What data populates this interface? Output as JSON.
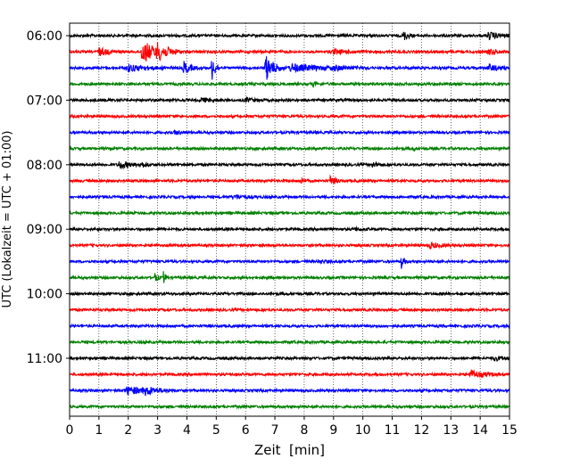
{
  "chart_data": {
    "type": "line",
    "title": "",
    "xlabel": "Zeit  [min]",
    "ylabel": "UTC (Lokalzeit = UTC + 01:00)",
    "xlim": [
      0,
      15
    ],
    "x_ticks": [
      "0",
      "1",
      "2",
      "3",
      "4",
      "5",
      "6",
      "7",
      "8",
      "9",
      "10",
      "11",
      "12",
      "13",
      "14",
      "15"
    ],
    "y_tick_labels": [
      "06:00",
      "07:00",
      "08:00",
      "09:00",
      "10:00",
      "11:00"
    ],
    "grid": "vertical dotted at each minute",
    "legend": "none",
    "trace_interval_minutes": 15,
    "traces": [
      {
        "start": "06:00",
        "color": "#000000",
        "events": [
          {
            "t": 11.4,
            "amp": 0.35,
            "dur": 0.15
          },
          {
            "t": 14.3,
            "amp": 0.25,
            "dur": 0.4
          }
        ]
      },
      {
        "start": "06:15",
        "color": "#ff0000",
        "events": [
          {
            "t": 1.0,
            "amp": 0.3,
            "dur": 0.3
          },
          {
            "t": 2.5,
            "amp": 0.9,
            "dur": 0.4
          },
          {
            "t": 3.0,
            "amp": 0.8,
            "dur": 0.35
          },
          {
            "t": 9.0,
            "amp": 0.15,
            "dur": 0.5
          },
          {
            "t": 14.3,
            "amp": 0.2,
            "dur": 0.3
          }
        ]
      },
      {
        "start": "06:30",
        "color": "#0000ff",
        "events": [
          {
            "t": 2.0,
            "amp": 0.25,
            "dur": 0.6
          },
          {
            "t": 3.9,
            "amp": 0.5,
            "dur": 0.2
          },
          {
            "t": 4.85,
            "amp": 1.0,
            "dur": 0.12
          },
          {
            "t": 6.7,
            "amp": 1.0,
            "dur": 0.25
          },
          {
            "t": 7.6,
            "amp": 0.3,
            "dur": 0.8
          },
          {
            "t": 9.0,
            "amp": 0.2,
            "dur": 0.5
          },
          {
            "t": 14.3,
            "amp": 0.25,
            "dur": 0.3
          }
        ]
      },
      {
        "start": "06:45",
        "color": "#008000",
        "events": [
          {
            "t": 8.3,
            "amp": 0.2,
            "dur": 0.1
          }
        ]
      },
      {
        "start": "07:00",
        "color": "#000000",
        "events": [
          {
            "t": 4.5,
            "amp": 0.15,
            "dur": 0.3
          },
          {
            "t": 6.0,
            "amp": 0.15,
            "dur": 0.3
          }
        ]
      },
      {
        "start": "07:15",
        "color": "#ff0000",
        "events": []
      },
      {
        "start": "07:30",
        "color": "#0000ff",
        "events": [
          {
            "t": 3.6,
            "amp": 0.15,
            "dur": 0.2
          }
        ]
      },
      {
        "start": "07:45",
        "color": "#008000",
        "events": [
          {
            "t": 11.7,
            "amp": 0.15,
            "dur": 0.1
          }
        ]
      },
      {
        "start": "08:00",
        "color": "#000000",
        "events": [
          {
            "t": 1.7,
            "amp": 0.3,
            "dur": 0.3
          },
          {
            "t": 2.4,
            "amp": 0.25,
            "dur": 0.2
          },
          {
            "t": 10.3,
            "amp": 0.2,
            "dur": 0.2
          }
        ]
      },
      {
        "start": "08:15",
        "color": "#ff0000",
        "events": [
          {
            "t": 7.9,
            "amp": 0.2,
            "dur": 0.1
          },
          {
            "t": 8.9,
            "amp": 0.4,
            "dur": 0.15
          }
        ]
      },
      {
        "start": "08:30",
        "color": "#0000ff",
        "events": [
          {
            "t": 5.6,
            "amp": 0.15,
            "dur": 0.4
          }
        ]
      },
      {
        "start": "08:45",
        "color": "#008000",
        "events": []
      },
      {
        "start": "09:00",
        "color": "#000000",
        "events": [
          {
            "t": 9.7,
            "amp": 0.12,
            "dur": 0.2
          }
        ]
      },
      {
        "start": "09:15",
        "color": "#ff0000",
        "events": [
          {
            "t": 12.3,
            "amp": 0.2,
            "dur": 0.3
          }
        ]
      },
      {
        "start": "09:30",
        "color": "#0000ff",
        "events": [
          {
            "t": 8.5,
            "amp": 0.15,
            "dur": 0.2
          },
          {
            "t": 11.3,
            "amp": 0.55,
            "dur": 0.1
          }
        ]
      },
      {
        "start": "09:45",
        "color": "#008000",
        "events": [
          {
            "t": 2.9,
            "amp": 0.35,
            "dur": 0.1
          },
          {
            "t": 3.2,
            "amp": 0.45,
            "dur": 0.08
          }
        ]
      },
      {
        "start": "10:00",
        "color": "#000000",
        "events": []
      },
      {
        "start": "10:15",
        "color": "#ff0000",
        "events": []
      },
      {
        "start": "10:30",
        "color": "#0000ff",
        "events": []
      },
      {
        "start": "10:45",
        "color": "#008000",
        "events": []
      },
      {
        "start": "11:00",
        "color": "#000000",
        "events": [
          {
            "t": 14.5,
            "amp": 0.15,
            "dur": 0.3
          }
        ]
      },
      {
        "start": "11:15",
        "color": "#ff0000",
        "events": [
          {
            "t": 13.7,
            "amp": 0.3,
            "dur": 0.4
          }
        ]
      },
      {
        "start": "11:30",
        "color": "#0000ff",
        "events": [
          {
            "t": 2.0,
            "amp": 0.3,
            "dur": 0.6
          },
          {
            "t": 2.6,
            "amp": 0.35,
            "dur": 0.4
          }
        ]
      },
      {
        "start": "11:45",
        "color": "#008000",
        "events": []
      }
    ]
  }
}
